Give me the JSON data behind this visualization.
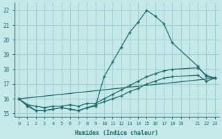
{
  "xlabel": "Humidex (Indice chaleur)",
  "xlim": [
    -0.5,
    23.5
  ],
  "ylim": [
    14.8,
    22.5
  ],
  "bg_color": "#c5e8e8",
  "line_color": "#1e6b6b",
  "grid_color": "#9ecece",
  "yticks": [
    15,
    16,
    17,
    18,
    19,
    20,
    21,
    22
  ],
  "xtick_labels": [
    "0",
    "1",
    "2",
    "3",
    "4",
    "5",
    "6",
    "7",
    "8",
    "9",
    "10",
    "11",
    "12",
    "13",
    "14",
    "15",
    "16",
    "17",
    "18",
    "19",
    "",
    "21",
    "22",
    "23"
  ],
  "curve_main_x": [
    0,
    1,
    2,
    3,
    4,
    5,
    6,
    7,
    8,
    9,
    10,
    11,
    12,
    13,
    14,
    15,
    16,
    17,
    18,
    21,
    22,
    23
  ],
  "curve_main_y": [
    16.0,
    15.6,
    15.2,
    15.2,
    15.3,
    15.4,
    15.3,
    15.2,
    15.4,
    15.5,
    17.5,
    18.5,
    19.5,
    20.5,
    21.2,
    22.0,
    21.6,
    21.1,
    19.8,
    18.2,
    17.5,
    17.4
  ],
  "curve2_x": [
    0,
    1,
    2,
    3,
    4,
    5,
    6,
    7,
    8,
    9,
    10,
    11,
    12,
    13,
    14,
    15,
    16,
    17,
    18,
    21,
    22,
    23
  ],
  "curve2_y": [
    16.0,
    15.6,
    15.5,
    15.4,
    15.5,
    15.5,
    15.6,
    15.5,
    15.7,
    15.7,
    16.0,
    16.3,
    16.6,
    16.9,
    17.2,
    17.5,
    17.7,
    17.9,
    18.0,
    18.1,
    17.6,
    17.4
  ],
  "curve3_x": [
    0,
    23
  ],
  "curve3_y": [
    16.0,
    17.4
  ],
  "curve4_x": [
    0,
    1,
    2,
    3,
    4,
    5,
    6,
    7,
    8,
    9,
    10,
    11,
    12,
    13,
    14,
    15,
    16,
    17,
    18,
    21,
    22,
    23
  ],
  "curve4_y": [
    16.0,
    15.5,
    15.2,
    15.2,
    15.3,
    15.4,
    15.3,
    15.2,
    15.4,
    15.6,
    15.8,
    16.0,
    16.2,
    16.5,
    16.7,
    17.0,
    17.2,
    17.4,
    17.5,
    17.6,
    17.2,
    17.4
  ]
}
